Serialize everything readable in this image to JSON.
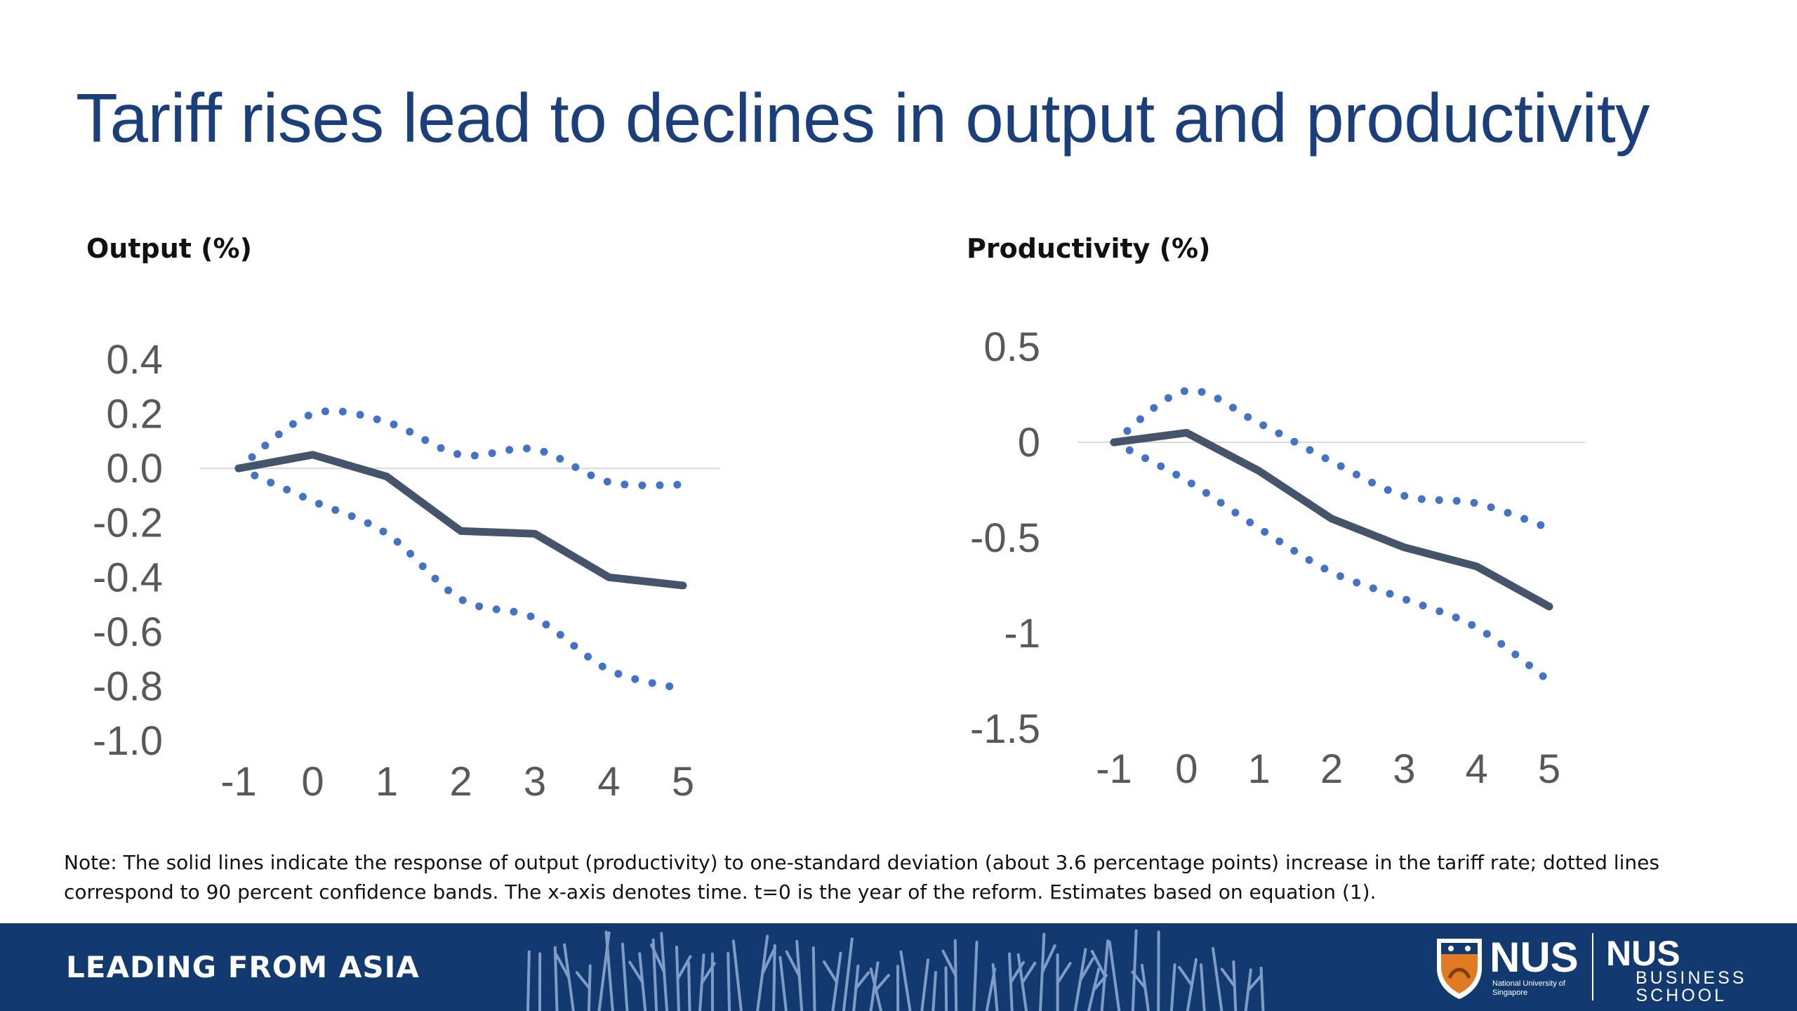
{
  "slide": {
    "title": "Tariff rises lead to declines in output and productivity",
    "note": "Note: The solid lines indicate the response of output (productivity) to one-standard deviation (about 3.6 percentage points) increase in the tariff rate; dotted lines correspond to 90 percent confidence bands. The x-axis denotes time. t=0 is the year of the reform. Estimates based on equation (1)."
  },
  "chart_data": [
    {
      "type": "line",
      "title": "Output (%)",
      "x": [
        -1,
        0,
        1,
        2,
        3,
        4,
        5
      ],
      "x_tick_labels": [
        "-1",
        "0",
        "1",
        "2",
        "3",
        "4",
        "5"
      ],
      "y_tick_labels": [
        "0.4",
        "0.2",
        "0.0",
        "-0.2",
        "-0.4",
        "-0.6",
        "-0.8",
        "-1.0"
      ],
      "y_ticks": [
        0.4,
        0.2,
        0.0,
        -0.2,
        -0.4,
        -0.6,
        -0.8,
        -1.0
      ],
      "ylim": [
        -1.0,
        0.4
      ],
      "grid": false,
      "zero_line": true,
      "series": [
        {
          "role": "estimate",
          "style": "solid",
          "color": "#44546a",
          "values": [
            0.0,
            0.05,
            -0.03,
            -0.23,
            -0.24,
            -0.4,
            -0.43
          ]
        },
        {
          "role": "upper-band",
          "style": "dotted",
          "color": "#4472c4",
          "values": [
            0.0,
            0.2,
            0.17,
            0.05,
            0.07,
            -0.05,
            -0.06
          ]
        },
        {
          "role": "lower-band",
          "style": "dotted",
          "color": "#4472c4",
          "values": [
            0.0,
            -0.12,
            -0.24,
            -0.48,
            -0.55,
            -0.74,
            -0.81
          ]
        }
      ]
    },
    {
      "type": "line",
      "title": "Productivity (%)",
      "x": [
        -1,
        0,
        1,
        2,
        3,
        4,
        5
      ],
      "x_tick_labels": [
        "-1",
        "0",
        "1",
        "2",
        "3",
        "4",
        "5"
      ],
      "y_tick_labels": [
        "0.5",
        "0",
        "-0.5",
        "-1",
        "-1.5"
      ],
      "y_ticks": [
        0.5,
        0,
        -0.5,
        -1,
        -1.5
      ],
      "ylim": [
        -1.5,
        0.5
      ],
      "grid": false,
      "zero_line": true,
      "series": [
        {
          "role": "estimate",
          "style": "solid",
          "color": "#44546a",
          "values": [
            0.0,
            0.05,
            -0.15,
            -0.4,
            -0.55,
            -0.65,
            -0.86
          ]
        },
        {
          "role": "upper-band",
          "style": "dotted",
          "color": "#4472c4",
          "values": [
            0.0,
            0.27,
            0.1,
            -0.1,
            -0.28,
            -0.32,
            -0.45
          ]
        },
        {
          "role": "lower-band",
          "style": "dotted",
          "color": "#4472c4",
          "values": [
            0.0,
            -0.2,
            -0.45,
            -0.68,
            -0.82,
            -0.97,
            -1.25
          ]
        }
      ]
    }
  ],
  "footer": {
    "tagline": "LEADING FROM ASIA",
    "logo_text": "NUS",
    "logo_subtext": "National University of Singapore",
    "business_logo_text": "NUS",
    "business_school_text": "BUSINESS SCHOOL",
    "background_color": "#123a70"
  }
}
